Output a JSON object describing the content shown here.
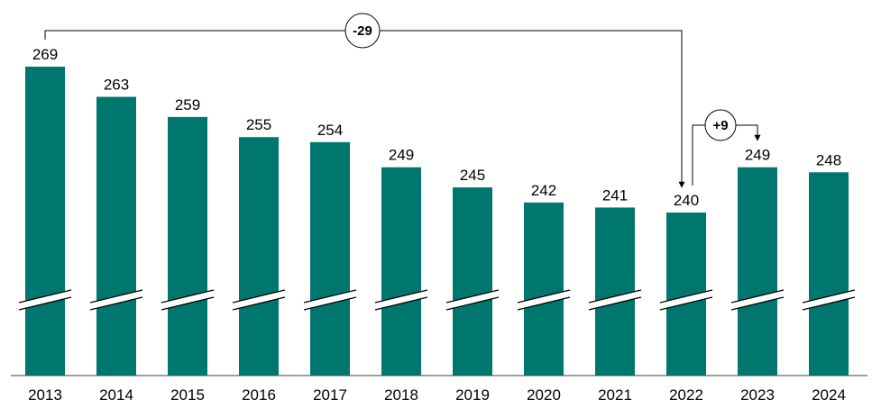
{
  "chart_data": {
    "type": "bar",
    "categories": [
      "2013",
      "2014",
      "2015",
      "2016",
      "2017",
      "2018",
      "2019",
      "2020",
      "2021",
      "2022",
      "2023",
      "2024"
    ],
    "values": [
      269,
      263,
      259,
      255,
      254,
      249,
      245,
      242,
      241,
      240,
      249,
      248
    ],
    "title": "",
    "xlabel": "",
    "ylabel": "",
    "axis_break": true,
    "grid": false,
    "legend": "none",
    "bar_color": "#00776E",
    "annotations": [
      {
        "label": "-29",
        "from": "2013",
        "to": "2022"
      },
      {
        "label": "+9",
        "from": "2022",
        "to": "2023"
      }
    ]
  }
}
